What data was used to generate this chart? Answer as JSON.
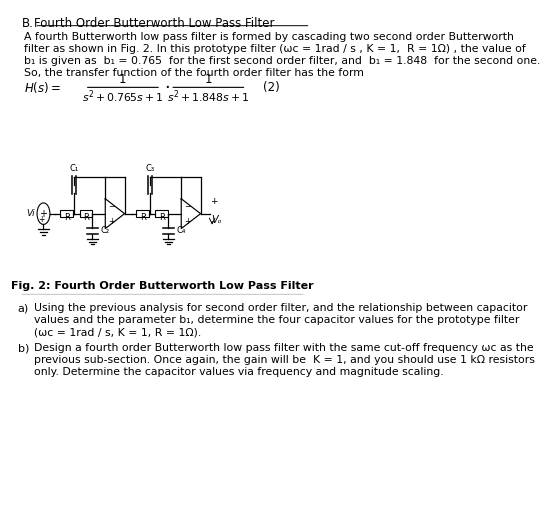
{
  "bg_color": "#ffffff",
  "text_color": "#000000",
  "title_b": "B.",
  "title_text": "Fourth Order Butterworth Low Pass Filter",
  "body_lines": [
    "A fourth Butterworth low pass filter is formed by cascading two second order Butterworth",
    "filter as shown in Fig. 2. In this prototype filter (ωc = 1rad / s , K = 1,  R = 1Ω) , the value of",
    "b₁ is given as  b₁ = 0.765  for the first second order filter, and  b₁ = 1.848  for the second one.",
    "So, the transfer function of the fourth order filter has the form"
  ],
  "fig_caption": "Fig. 2: Fourth Order Butterworth Low Pass Filter",
  "part_a_label": "a)",
  "part_a_lines": [
    "Using the previous analysis for second order filter, and the relationship between capacitor",
    "values and the parameter b₁, determine the four capacitor values for the prototype filter",
    "(ωc = 1rad / s, K = 1, R = 1Ω)."
  ],
  "part_b_label": "b)",
  "part_b_lines": [
    "Design a fourth order Butterworth low pass filter with the same cut-off frequency ωc as the",
    "previous sub-section. Once again, the gain will be  K = 1, and you should use 1 kΩ resistors",
    "only. Determine the capacitor values via frequency and magnitude scaling."
  ]
}
